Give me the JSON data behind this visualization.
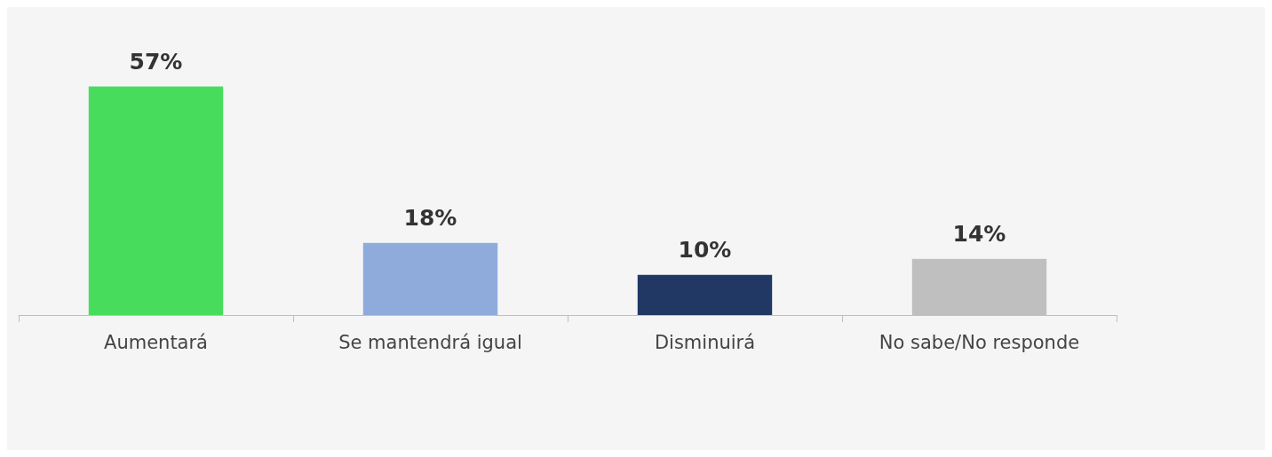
{
  "chart_data": {
    "type": "bar",
    "categories": [
      "Aumentará",
      "Se mantendrá igual",
      "Disminuirá",
      "No sabe/No responde"
    ],
    "values": [
      57,
      18,
      10,
      14
    ],
    "colors": [
      "#48dc5c",
      "#8fabdc",
      "#213864",
      "#bfbfbf"
    ],
    "data_labels": true,
    "value_labels": [
      "57%",
      "18%",
      "10%",
      "14%"
    ]
  }
}
